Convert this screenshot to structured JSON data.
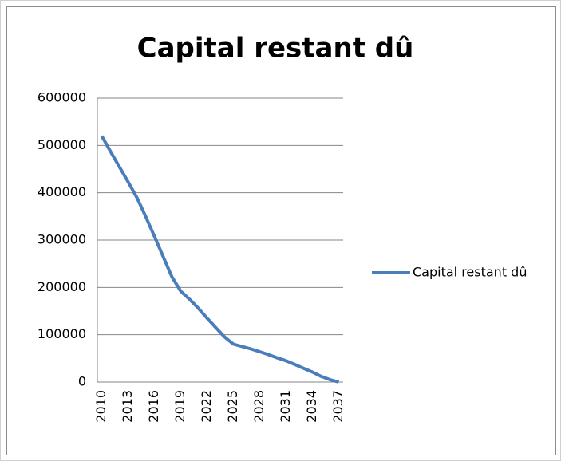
{
  "chart_data": {
    "type": "line",
    "title": "Capital restant dû",
    "categories": [
      "2010",
      null,
      null,
      "2013",
      null,
      null,
      "2016",
      null,
      null,
      "2019",
      null,
      null,
      "2022",
      null,
      null,
      "2025",
      null,
      null,
      "2028",
      null,
      null,
      "2031",
      null,
      null,
      "2034",
      null,
      null,
      "2037"
    ],
    "series": [
      {
        "name": "Capital restant dû",
        "color": "#4a7ebb",
        "values": [
          520000,
          487000,
          455000,
          423000,
          390000,
          350000,
          308000,
          265000,
          222000,
          192000,
          175000,
          156000,
          135000,
          115000,
          95000,
          80000,
          75000,
          70000,
          64000,
          58000,
          51000,
          45000,
          37000,
          29000,
          21000,
          12000,
          5000,
          0
        ]
      }
    ],
    "ylim": [
      0,
      600000
    ],
    "yticks": [
      0,
      100000,
      200000,
      300000,
      400000,
      500000,
      600000
    ],
    "grid": true,
    "legend": "right"
  }
}
